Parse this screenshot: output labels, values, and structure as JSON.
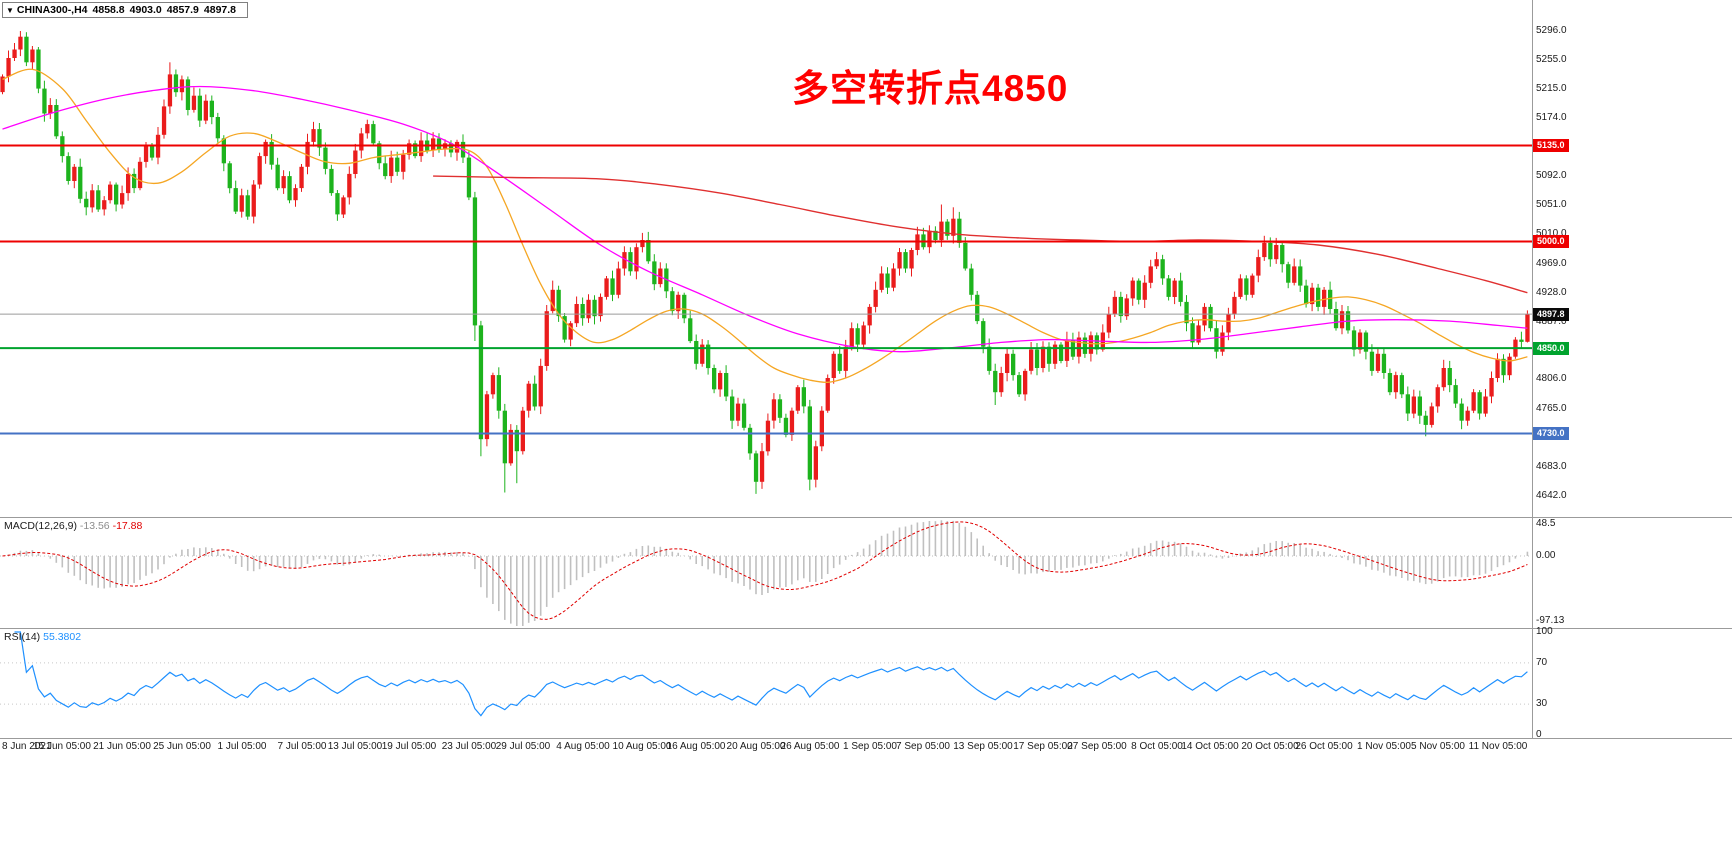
{
  "title_bar": {
    "collapse_icon": "▼",
    "symbol": "CHINA300-,H4",
    "open": "4858.8",
    "high": "4903.0",
    "low": "4857.9",
    "close": "4897.8"
  },
  "annotation": {
    "text": "多空转折点4850",
    "color": "#ff0000"
  },
  "colors": {
    "bull": "#ea1c1c",
    "bear": "#1db31d",
    "macd_hist": "#c0c0c0",
    "macd_signal": "#e00000",
    "rsi_line": "#1e90ff",
    "panel_divider": "#9b9b9b"
  },
  "chart_data": {
    "type": "candlestick",
    "symbol": "CHINA300-",
    "timeframe": "H4",
    "last_bar": {
      "open": 4858.8,
      "high": 4903.0,
      "low": 4857.9,
      "close": 4897.8
    },
    "y_axis": {
      "min": 4642.0,
      "max": 5296.0,
      "labels": [
        5296,
        5255,
        5215,
        5174,
        5133,
        5092,
        5051,
        5010,
        4969,
        4928,
        4887,
        4846,
        4806,
        4765,
        4724,
        4683,
        4642
      ]
    },
    "x_labels": [
      {
        "i": 1,
        "t": "8 Jun 2021"
      },
      {
        "i": 10,
        "t": "15 Jun 05:00"
      },
      {
        "i": 20,
        "t": "21 Jun 05:00"
      },
      {
        "i": 30,
        "t": "25 Jun 05:00"
      },
      {
        "i": 40,
        "t": "1 Jul 05:00"
      },
      {
        "i": 50,
        "t": "7 Jul 05:00"
      },
      {
        "i": 59,
        "t": "13 Jul 05:00"
      },
      {
        "i": 68,
        "t": "19 Jul 05:00"
      },
      {
        "i": 78,
        "t": "23 Jul 05:00"
      },
      {
        "i": 87,
        "t": "29 Jul 05:00"
      },
      {
        "i": 97,
        "t": "4 Aug 05:00"
      },
      {
        "i": 107,
        "t": "10 Aug 05:00"
      },
      {
        "i": 116,
        "t": "16 Aug 05:00"
      },
      {
        "i": 126,
        "t": "20 Aug 05:00"
      },
      {
        "i": 135,
        "t": "26 Aug 05:00"
      },
      {
        "i": 145,
        "t": "1 Sep 05:00"
      },
      {
        "i": 154,
        "t": "7 Sep 05:00"
      },
      {
        "i": 164,
        "t": "13 Sep 05:00"
      },
      {
        "i": 174,
        "t": "17 Sep 05:00"
      },
      {
        "i": 183,
        "t": "27 Sep 05:00"
      },
      {
        "i": 193,
        "t": "8 Oct 05:00"
      },
      {
        "i": 202,
        "t": "14 Oct 05:00"
      },
      {
        "i": 212,
        "t": "20 Oct 05:00"
      },
      {
        "i": 221,
        "t": "26 Oct 05:00"
      },
      {
        "i": 231,
        "t": "1 Nov 05:00"
      },
      {
        "i": 240,
        "t": "5 Nov 05:00"
      },
      {
        "i": 250,
        "t": "11 Nov 05:00"
      }
    ],
    "horizontal_lines": [
      {
        "price": 5135.0,
        "label": "5135.0",
        "color": "#ee0000",
        "width": 2
      },
      {
        "price": 5000.0,
        "label": "5000.0",
        "color": "#ee0000",
        "width": 2
      },
      {
        "price": 4850.0,
        "label": "4850.0",
        "color": "#00a32e",
        "width": 2
      },
      {
        "price": 4730.0,
        "label": "4730.0",
        "color": "#4472c4",
        "width": 2
      }
    ],
    "current_price": {
      "price": 4897.8,
      "label": "4897.8",
      "line_color": "#9a9a9a",
      "tag_bg": "#0a0a0a"
    },
    "candles": {
      "first_open": 5210,
      "closes": [
        5232,
        5258,
        5270,
        5288,
        5252,
        5270,
        5215,
        5180,
        5192,
        5148,
        5120,
        5085,
        5105,
        5060,
        5048,
        5072,
        5045,
        5058,
        5080,
        5052,
        5068,
        5095,
        5075,
        5112,
        5135,
        5118,
        5150,
        5190,
        5235,
        5210,
        5228,
        5185,
        5205,
        5170,
        5198,
        5175,
        5145,
        5110,
        5075,
        5042,
        5065,
        5035,
        5080,
        5120,
        5140,
        5108,
        5075,
        5092,
        5058,
        5075,
        5105,
        5140,
        5158,
        5132,
        5102,
        5068,
        5038,
        5062,
        5095,
        5128,
        5152,
        5165,
        5138,
        5110,
        5092,
        5118,
        5098,
        5122,
        5138,
        5120,
        5142,
        5128,
        5145,
        5130,
        5138,
        5125,
        5140,
        5118,
        5062,
        4882,
        4722,
        4785,
        4812,
        4762,
        4688,
        4735,
        4705,
        4762,
        4800,
        4768,
        4825,
        4902,
        4932,
        4895,
        4862,
        4885,
        4912,
        4892,
        4918,
        4895,
        4922,
        4948,
        4925,
        4962,
        4985,
        4958,
        4992,
        5002,
        4972,
        4940,
        4962,
        4930,
        4902,
        4925,
        4892,
        4860,
        4828,
        4855,
        4822,
        4792,
        4815,
        4782,
        4748,
        4772,
        4738,
        4702,
        4662,
        4705,
        4748,
        4778,
        4752,
        4728,
        4762,
        4795,
        4768,
        4665,
        4712,
        4762,
        4808,
        4842,
        4818,
        4852,
        4878,
        4855,
        4882,
        4908,
        4932,
        4955,
        4935,
        4962,
        4985,
        4962,
        4988,
        5010,
        4992,
        5015,
        5002,
        5028,
        5008,
        5032,
        4998,
        4962,
        4925,
        4888,
        4852,
        4818,
        4788,
        4815,
        4842,
        4812,
        4785,
        4818,
        4848,
        4822,
        4852,
        4828,
        4855,
        4832,
        4862,
        4838,
        4865,
        4842,
        4868,
        4848,
        4872,
        4898,
        4922,
        4895,
        4920,
        4945,
        4918,
        4942,
        4965,
        4975,
        4948,
        4922,
        4945,
        4915,
        4885,
        4858,
        4882,
        4908,
        4878,
        4845,
        4872,
        4898,
        4922,
        4948,
        4925,
        4952,
        4978,
        4998,
        4975,
        4995,
        4968,
        4942,
        4965,
        4938,
        4912,
        4935,
        4908,
        4932,
        4905,
        4878,
        4902,
        4875,
        4848,
        4872,
        4845,
        4818,
        4842,
        4815,
        4788,
        4812,
        4785,
        4758,
        4782,
        4755,
        4742,
        4768,
        4795,
        4822,
        4798,
        4772,
        4748,
        4762,
        4788,
        4758,
        4782,
        4808,
        4835,
        4812,
        4838,
        4862,
        4858.8,
        4897.8
      ],
      "wick_overrides": {
        "3": [
          5296,
          null
        ],
        "28": [
          5252,
          null
        ],
        "79": [
          null,
          4860
        ],
        "80": [
          null,
          4698
        ],
        "84": [
          null,
          4647
        ],
        "86": [
          null,
          4660
        ],
        "92": [
          4945,
          null
        ],
        "107": [
          5012,
          null
        ],
        "126": [
          null,
          4645
        ],
        "135": [
          null,
          4650
        ],
        "157": [
          5052,
          null
        ],
        "159": [
          5048,
          null
        ],
        "166": [
          null,
          4770
        ],
        "193": [
          4985,
          null
        ],
        "211": [
          5008,
          null
        ],
        "213": [
          5005,
          null
        ],
        "238": [
          null,
          4726
        ],
        "244": [
          null,
          4736
        ],
        "255": [
          4903.0,
          4857.9
        ]
      }
    },
    "moving_averages": [
      {
        "name": "fast-ma-orange",
        "color": "#f5a623",
        "width": 1.3,
        "points": [
          [
            0,
            5228
          ],
          [
            5,
            5242
          ],
          [
            10,
            5215
          ],
          [
            14,
            5170
          ],
          [
            18,
            5125
          ],
          [
            22,
            5090
          ],
          [
            26,
            5082
          ],
          [
            30,
            5098
          ],
          [
            34,
            5125
          ],
          [
            38,
            5148
          ],
          [
            42,
            5152
          ],
          [
            46,
            5140
          ],
          [
            50,
            5125
          ],
          [
            54,
            5112
          ],
          [
            58,
            5110
          ],
          [
            62,
            5118
          ],
          [
            66,
            5122
          ],
          [
            70,
            5126
          ],
          [
            74,
            5130
          ],
          [
            78,
            5128
          ],
          [
            81,
            5105
          ],
          [
            84,
            5055
          ],
          [
            87,
            4995
          ],
          [
            90,
            4940
          ],
          [
            93,
            4898
          ],
          [
            96,
            4872
          ],
          [
            99,
            4858
          ],
          [
            102,
            4862
          ],
          [
            105,
            4875
          ],
          [
            108,
            4890
          ],
          [
            111,
            4902
          ],
          [
            114,
            4905
          ],
          [
            117,
            4898
          ],
          [
            120,
            4882
          ],
          [
            123,
            4862
          ],
          [
            126,
            4840
          ],
          [
            129,
            4822
          ],
          [
            132,
            4812
          ],
          [
            135,
            4805
          ],
          [
            138,
            4802
          ],
          [
            141,
            4808
          ],
          [
            144,
            4820
          ],
          [
            147,
            4835
          ],
          [
            150,
            4852
          ],
          [
            153,
            4870
          ],
          [
            156,
            4888
          ],
          [
            159,
            4902
          ],
          [
            162,
            4910
          ],
          [
            165,
            4908
          ],
          [
            168,
            4898
          ],
          [
            171,
            4885
          ],
          [
            174,
            4872
          ],
          [
            177,
            4862
          ],
          [
            180,
            4858
          ],
          [
            183,
            4856
          ],
          [
            186,
            4858
          ],
          [
            189,
            4864
          ],
          [
            192,
            4872
          ],
          [
            195,
            4882
          ],
          [
            198,
            4888
          ],
          [
            201,
            4890
          ],
          [
            204,
            4888
          ],
          [
            207,
            4888
          ],
          [
            210,
            4892
          ],
          [
            213,
            4900
          ],
          [
            216,
            4908
          ],
          [
            219,
            4915
          ],
          [
            222,
            4920
          ],
          [
            225,
            4922
          ],
          [
            228,
            4918
          ],
          [
            231,
            4910
          ],
          [
            234,
            4898
          ],
          [
            237,
            4885
          ],
          [
            240,
            4870
          ],
          [
            243,
            4856
          ],
          [
            246,
            4844
          ],
          [
            249,
            4836
          ],
          [
            252,
            4832
          ],
          [
            255,
            4838
          ]
        ]
      },
      {
        "name": "mid-ma-magenta",
        "color": "#ff00ff",
        "width": 1.3,
        "points": [
          [
            0,
            5158
          ],
          [
            8,
            5180
          ],
          [
            17,
            5200
          ],
          [
            25,
            5212
          ],
          [
            33,
            5218
          ],
          [
            42,
            5212
          ],
          [
            50,
            5200
          ],
          [
            58,
            5185
          ],
          [
            67,
            5165
          ],
          [
            75,
            5138
          ],
          [
            83,
            5095
          ],
          [
            92,
            5042
          ],
          [
            100,
            4995
          ],
          [
            108,
            4958
          ],
          [
            117,
            4925
          ],
          [
            125,
            4895
          ],
          [
            133,
            4870
          ],
          [
            142,
            4852
          ],
          [
            150,
            4845
          ],
          [
            158,
            4850
          ],
          [
            167,
            4858
          ],
          [
            175,
            4862
          ],
          [
            183,
            4860
          ],
          [
            192,
            4858
          ],
          [
            200,
            4862
          ],
          [
            208,
            4870
          ],
          [
            217,
            4880
          ],
          [
            225,
            4888
          ],
          [
            233,
            4890
          ],
          [
            242,
            4888
          ],
          [
            250,
            4882
          ],
          [
            255,
            4878
          ]
        ]
      },
      {
        "name": "slow-ma-red",
        "color": "#e03030",
        "width": 1.4,
        "points": [
          [
            72,
            5092
          ],
          [
            85,
            5090
          ],
          [
            100,
            5088
          ],
          [
            110,
            5080
          ],
          [
            120,
            5068
          ],
          [
            130,
            5052
          ],
          [
            140,
            5035
          ],
          [
            150,
            5020
          ],
          [
            160,
            5010
          ],
          [
            170,
            5005
          ],
          [
            180,
            5002
          ],
          [
            190,
            5000
          ],
          [
            200,
            5002
          ],
          [
            210,
            5000
          ],
          [
            220,
            4995
          ],
          [
            230,
            4982
          ],
          [
            240,
            4962
          ],
          [
            248,
            4945
          ],
          [
            255,
            4928
          ]
        ]
      }
    ],
    "macd": {
      "label": "MACD(12,26,9)",
      "value1": "-13.56",
      "value2": "-17.88",
      "params": [
        12,
        26,
        9
      ],
      "axis": [
        {
          "v": 48.5,
          "t": "48.5"
        },
        {
          "v": 0,
          "t": "0.00"
        },
        {
          "v": -97.13,
          "t": "-97.13"
        }
      ]
    },
    "rsi": {
      "label": "RSI(14)",
      "value": "55.3802",
      "period": 14,
      "levels": [
        70,
        30
      ],
      "axis": [
        {
          "v": 100,
          "t": "100"
        },
        {
          "v": 70,
          "t": "70"
        },
        {
          "v": 30,
          "t": "30"
        },
        {
          "v": 0,
          "t": "0"
        }
      ]
    }
  }
}
